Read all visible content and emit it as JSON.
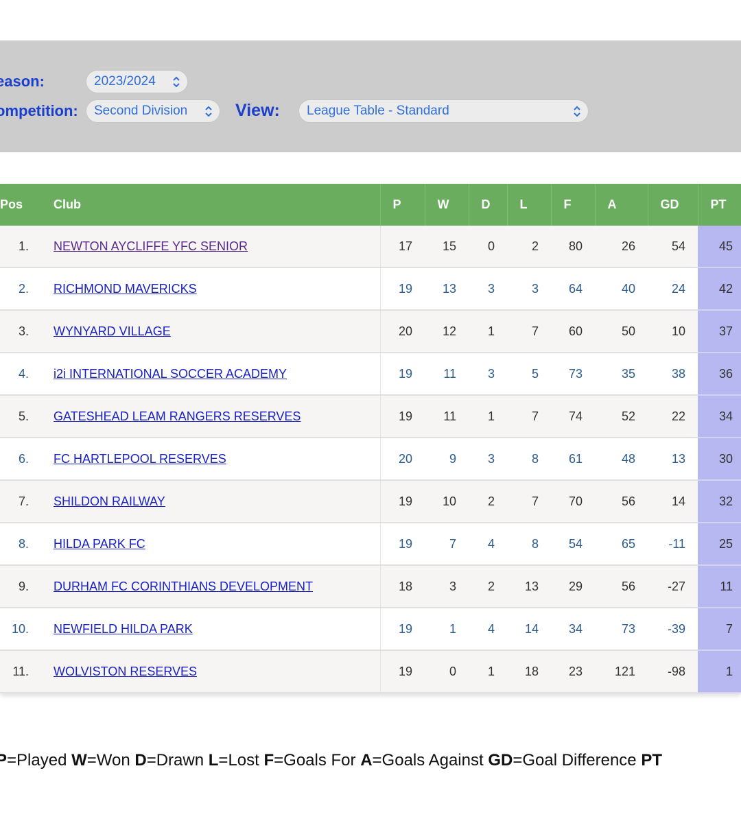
{
  "filters": {
    "season_label": "eason:",
    "season_value": "2023/2024",
    "competition_label": "ompetition:",
    "competition_value": "Second Division",
    "view_label": "View:",
    "view_value": "League Table - Standard"
  },
  "table": {
    "headers": {
      "pos": "Pos",
      "club": "Club",
      "p": "P",
      "w": "W",
      "d": "D",
      "l": "L",
      "f": "F",
      "a": "A",
      "gd": "GD",
      "pt": "PT"
    },
    "rows": [
      {
        "pos": "1.",
        "club": "NEWTON AYCLIFFE YFC SENIOR",
        "p": "17",
        "w": "15",
        "d": "0",
        "l": "2",
        "f": "80",
        "a": "26",
        "gd": "54",
        "pt": "45"
      },
      {
        "pos": "2.",
        "club": "RICHMOND MAVERICKS",
        "p": "19",
        "w": "13",
        "d": "3",
        "l": "3",
        "f": "64",
        "a": "40",
        "gd": "24",
        "pt": "42"
      },
      {
        "pos": "3.",
        "club": "WYNYARD VILLAGE",
        "p": "20",
        "w": "12",
        "d": "1",
        "l": "7",
        "f": "60",
        "a": "50",
        "gd": "10",
        "pt": "37"
      },
      {
        "pos": "4.",
        "club": "i2i INTERNATIONAL SOCCER ACADEMY",
        "p": "19",
        "w": "11",
        "d": "3",
        "l": "5",
        "f": "73",
        "a": "35",
        "gd": "38",
        "pt": "36"
      },
      {
        "pos": "5.",
        "club": "GATESHEAD LEAM RANGERS RESERVES",
        "p": "19",
        "w": "11",
        "d": "1",
        "l": "7",
        "f": "74",
        "a": "52",
        "gd": "22",
        "pt": "34"
      },
      {
        "pos": "6.",
        "club": "FC HARTLEPOOL RESERVES",
        "p": "20",
        "w": "9",
        "d": "3",
        "l": "8",
        "f": "61",
        "a": "48",
        "gd": "13",
        "pt": "30"
      },
      {
        "pos": "7.",
        "club": "SHILDON RAILWAY",
        "p": "19",
        "w": "10",
        "d": "2",
        "l": "7",
        "f": "70",
        "a": "56",
        "gd": "14",
        "pt": "32"
      },
      {
        "pos": "8.",
        "club": "HILDA PARK FC",
        "p": "19",
        "w": "7",
        "d": "4",
        "l": "8",
        "f": "54",
        "a": "65",
        "gd": "-11",
        "pt": "25"
      },
      {
        "pos": "9.",
        "club": "DURHAM FC CORINTHIANS DEVELOPMENT",
        "p": "18",
        "w": "3",
        "d": "2",
        "l": "13",
        "f": "29",
        "a": "56",
        "gd": "-27",
        "pt": "11"
      },
      {
        "pos": "10.",
        "club": "NEWFIELD HILDA PARK",
        "p": "19",
        "w": "1",
        "d": "4",
        "l": "14",
        "f": "34",
        "a": "73",
        "gd": "-39",
        "pt": "7"
      },
      {
        "pos": "11.",
        "club": "WOLVISTON RESERVES",
        "p": "19",
        "w": "0",
        "d": "1",
        "l": "18",
        "f": "23",
        "a": "121",
        "gd": "-98",
        "pt": "1"
      }
    ]
  },
  "legend": [
    {
      "key": "P",
      "text": "=Played "
    },
    {
      "key": "W",
      "text": "=Won "
    },
    {
      "key": "D",
      "text": "=Drawn "
    },
    {
      "key": "L",
      "text": "=Lost "
    },
    {
      "key": "F",
      "text": "=Goals For "
    },
    {
      "key": "A",
      "text": "=Goals Against "
    },
    {
      "key": "GD",
      "text": "=Goal Difference "
    },
    {
      "key": "PT",
      "text": ""
    }
  ],
  "colors": {
    "header_green": "#6aad5e",
    "points_column": "#b7b7f1",
    "filter_label_blue": "#1a3fcc",
    "select_text_blue": "#2f6fdb",
    "link_blue": "#1a22c4",
    "link_visited": "#5a2a8a"
  },
  "icons": {
    "select_arrow": "up-down-chevron-icon"
  }
}
